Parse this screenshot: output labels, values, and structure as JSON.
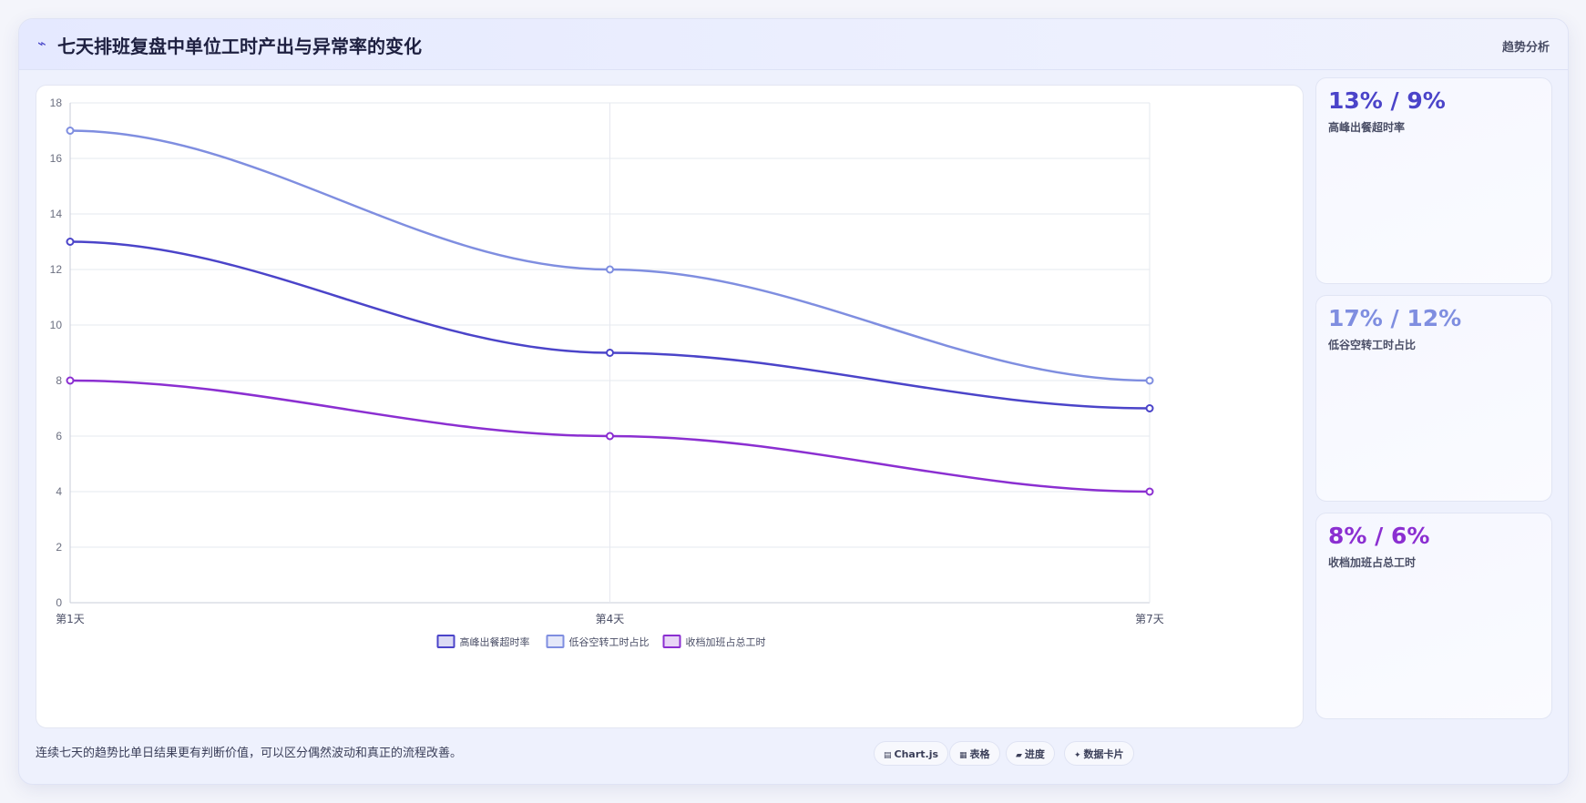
{
  "header": {
    "title_icon": "⌁",
    "title": "七天排班复盘中单位工时产出与异常率的变化",
    "tag": "趋势分析"
  },
  "kpis": [
    {
      "value": "13% / 9%",
      "label": "高峰出餐超时率",
      "color": "#4b44c9"
    },
    {
      "value": "17% / 12%",
      "label": "低谷空转工时占比",
      "color": "#7f8ee0"
    },
    {
      "value": "8% / 6%",
      "label": "收档加班占总工时",
      "color": "#8b2fd1"
    }
  ],
  "footer": {
    "note": "连续七天的趋势比单日结果更有判断价值，可以区分偶然波动和真正的流程改善。",
    "chips": [
      {
        "icon": "▤",
        "icon_name": "chart-icon",
        "label": "Chart.js"
      },
      {
        "icon": "▦",
        "icon_name": "table-icon",
        "label": "表格"
      },
      {
        "icon": "▰",
        "icon_name": "progress-icon",
        "label": "进度"
      },
      {
        "icon": "✦",
        "icon_name": "card-icon",
        "label": "数据卡片"
      }
    ]
  },
  "chart_data": {
    "type": "line",
    "x": [
      "第1天",
      "第4天",
      "第7天"
    ],
    "ylim": [
      0,
      18
    ],
    "yticks": [
      0,
      2,
      4,
      6,
      8,
      10,
      12,
      14,
      16,
      18
    ],
    "grid": true,
    "legend_position": "bottom",
    "series": [
      {
        "name": "高峰出餐超时率",
        "values": [
          13,
          9,
          7
        ],
        "color": "#4b44c9"
      },
      {
        "name": "低谷空转工时占比",
        "values": [
          17,
          12,
          8
        ],
        "color": "#7f8ee0"
      },
      {
        "name": "收档加班占总工时",
        "values": [
          8,
          6,
          4
        ],
        "color": "#8b2fd1"
      }
    ]
  }
}
